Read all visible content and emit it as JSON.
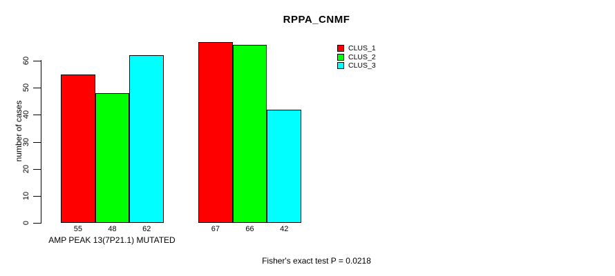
{
  "title": "RPPA_CNMF",
  "footnote": "Fisher's exact test P = 0.0218",
  "chart_data": {
    "type": "bar",
    "title": "RPPA_CNMF",
    "xlabel": "AMP PEAK 13(7P21.1) MUTATED",
    "ylabel": "number of cases",
    "categories": [
      "AMP PEAK 13(7P21.1) MUTATED",
      ""
    ],
    "series": [
      {
        "name": "CLUS_1",
        "color": "#ff0000",
        "values": [
          55,
          67
        ]
      },
      {
        "name": "CLUS_2",
        "color": "#00ff00",
        "values": [
          48,
          66
        ]
      },
      {
        "name": "CLUS_3",
        "color": "#00ffff",
        "values": [
          62,
          42
        ]
      }
    ],
    "bar_value_labels": [
      [
        55,
        48,
        62
      ],
      [
        67,
        66,
        42
      ]
    ],
    "yticks": [
      0,
      10,
      20,
      30,
      40,
      50,
      60
    ],
    "ylim": [
      0,
      60
    ],
    "grid": false,
    "legend_position": "top-right",
    "annotation": "Fisher's exact test P = 0.0218"
  }
}
